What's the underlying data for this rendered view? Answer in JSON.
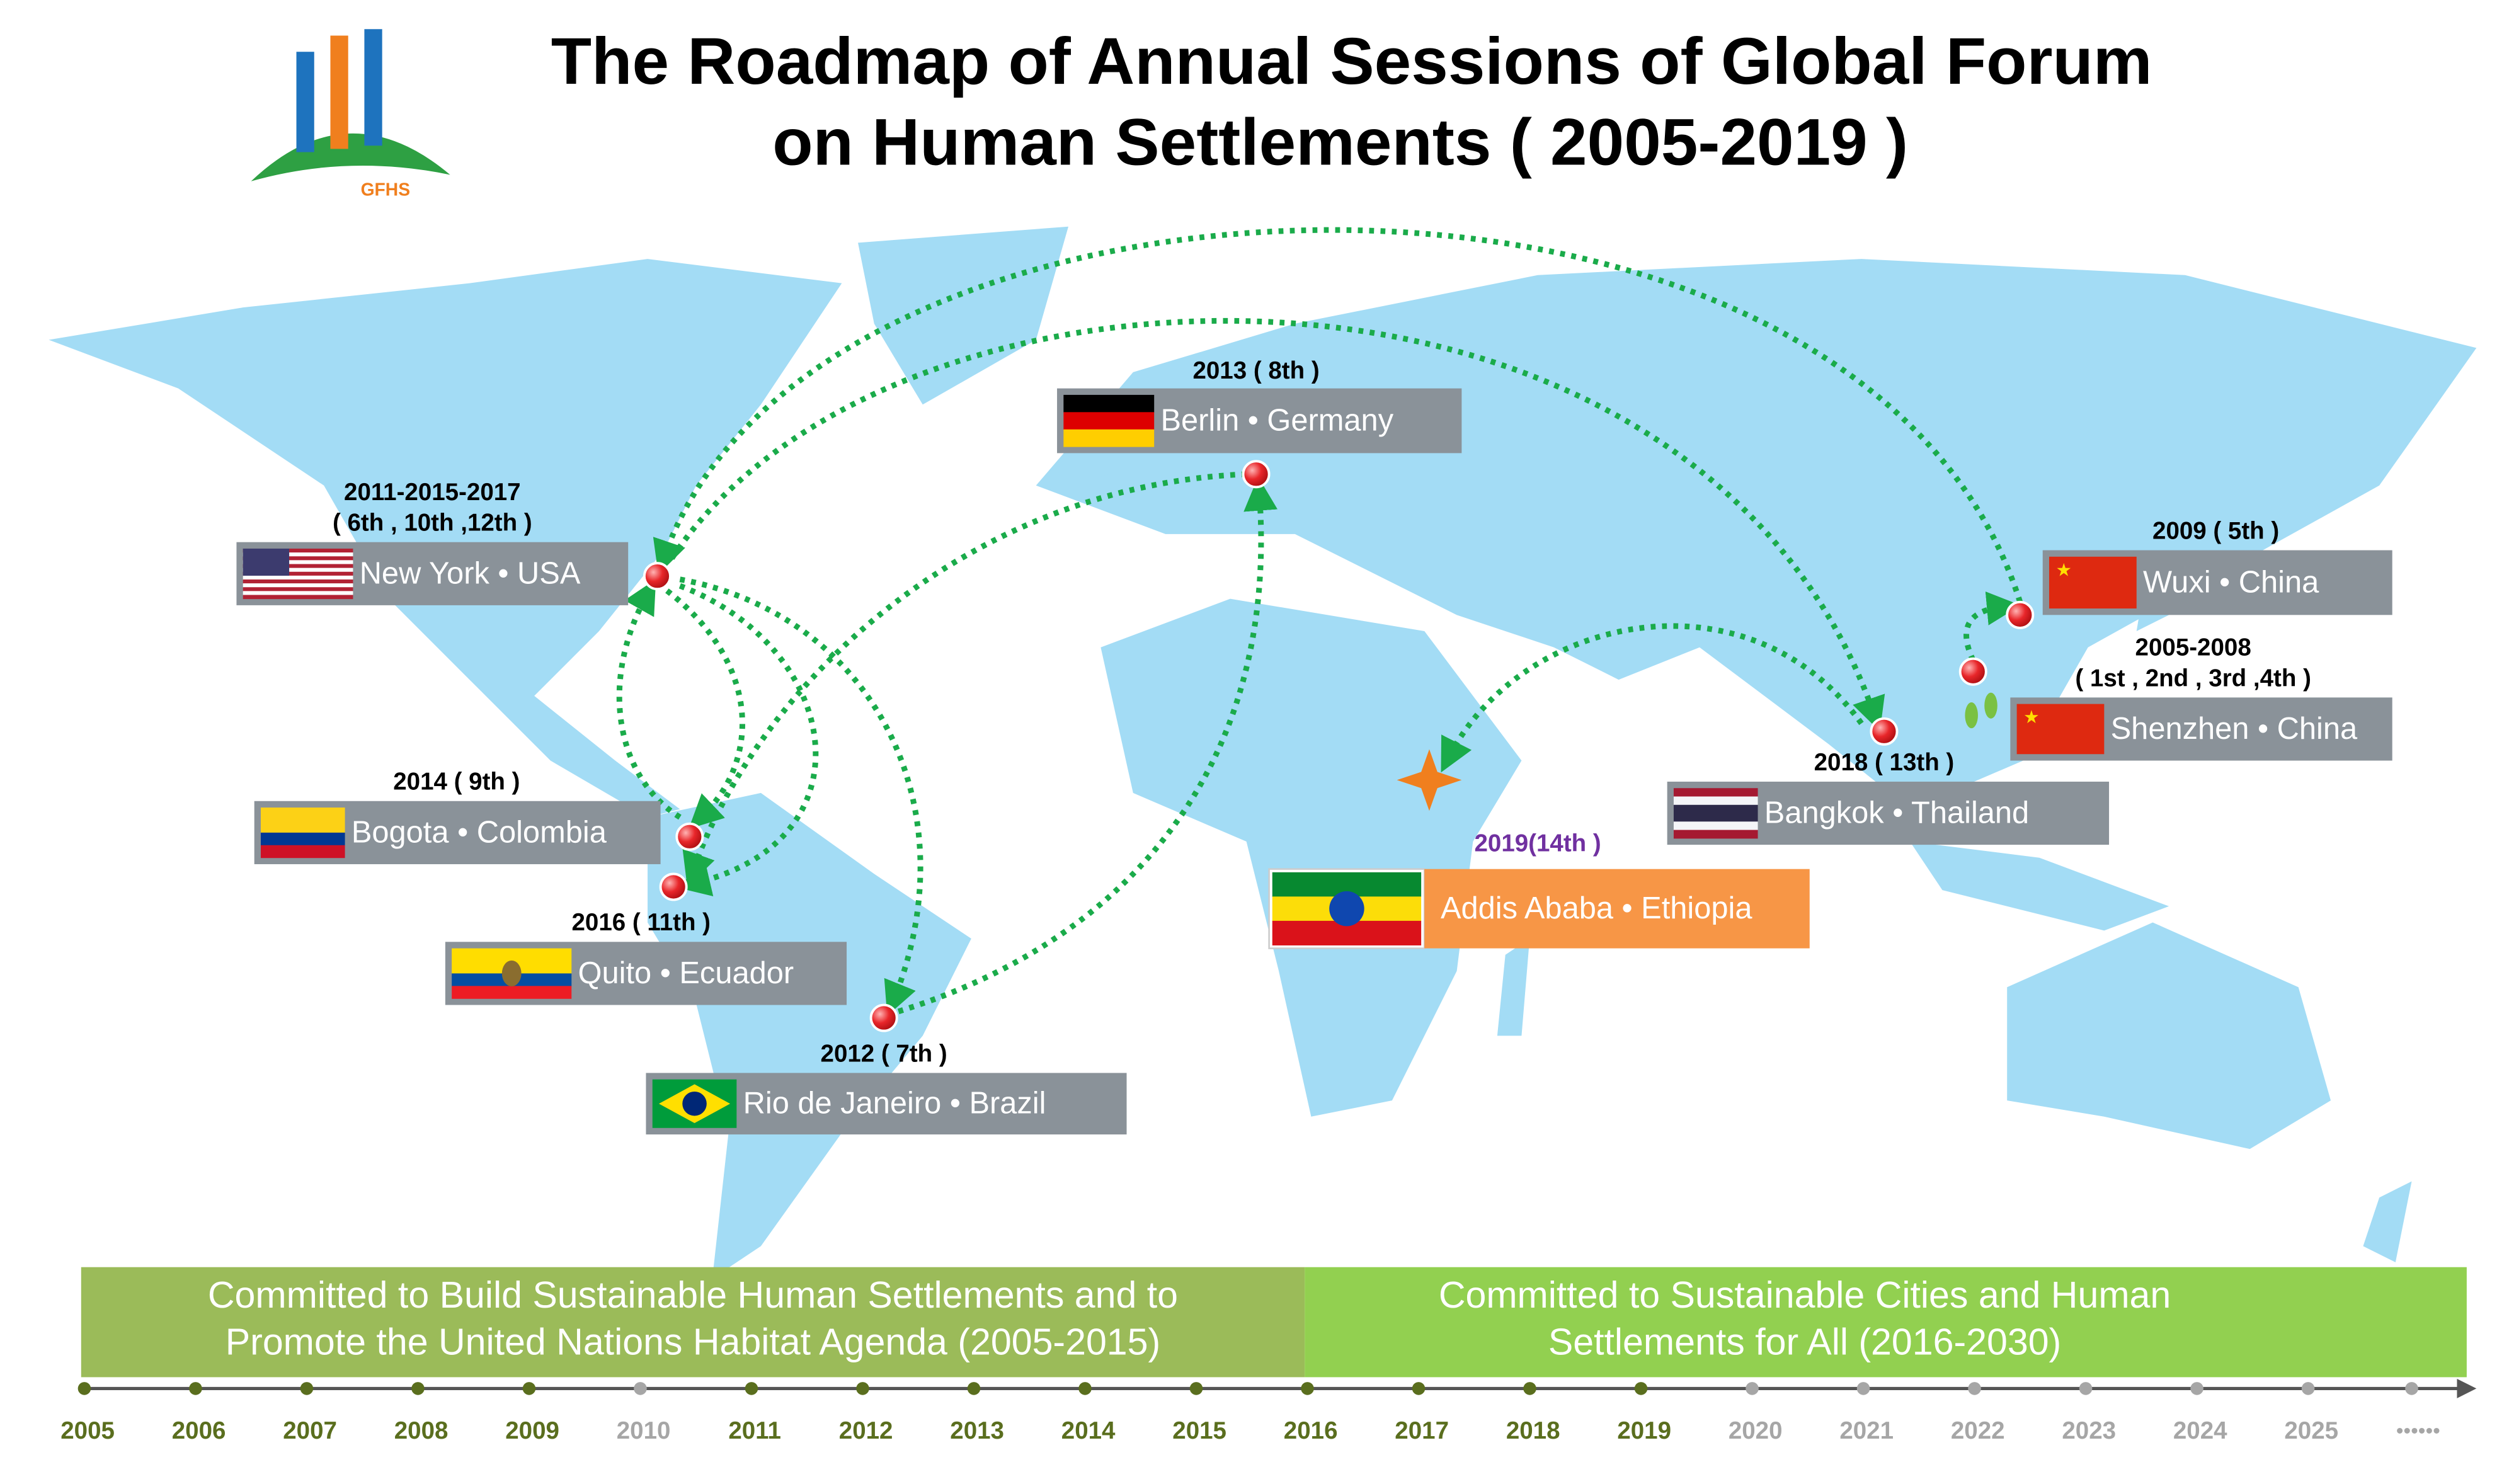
{
  "title": {
    "line1": "The Roadmap of  Annual Sessions of Global Forum",
    "line2": "on Human Settlements ( 2005-2019 )"
  },
  "logo": "GFHS",
  "sessions": [
    {
      "year": [
        "2013 ( 8th )"
      ],
      "city": "Berlin • Germany"
    },
    {
      "year": [
        "2011-2015-2017",
        "( 6th , 10th  ,12th  )"
      ],
      "city": "New York • USA"
    },
    {
      "year": [
        "2009 ( 5th )"
      ],
      "city": "Wuxi • China"
    },
    {
      "year": [
        "2005-2008",
        "( 1st , 2nd , 3rd  ,4th )"
      ],
      "city": "Shenzhen • China"
    },
    {
      "year": [
        "2018 ( 13th )"
      ],
      "city": "Bangkok • Thailand"
    },
    {
      "year": [
        "2014 ( 9th )"
      ],
      "city": "Bogota • Colombia"
    },
    {
      "year": [
        "2016 ( 11th )"
      ],
      "city": "Quito • Ecuador"
    },
    {
      "year": [
        "2012 ( 7th )"
      ],
      "city": "Rio de Janeiro •  Brazil"
    },
    {
      "year": [
        "2019(14th  )"
      ],
      "city": "Addis Ababa • Ethiopia"
    }
  ],
  "bands": [
    {
      "lines": [
        "Committed to Build Sustainable Human Settlements and to",
        "Promote the United Nations Habitat Agenda (2005-2015)"
      ],
      "color": "#9bbb59"
    },
    {
      "lines": [
        "Committed to Sustainable Cities and Human",
        "Settlements for All (2016-2030)"
      ],
      "color": "#92d050"
    }
  ],
  "timeline": {
    "years": [
      {
        "label": "2005",
        "color": "#5a6e1e"
      },
      {
        "label": "2006",
        "color": "#5a6e1e"
      },
      {
        "label": "2007",
        "color": "#5a6e1e"
      },
      {
        "label": "2008",
        "color": "#5a6e1e"
      },
      {
        "label": "2009",
        "color": "#5a6e1e"
      },
      {
        "label": "2010",
        "color": "#a6a6a6"
      },
      {
        "label": "2011",
        "color": "#5a6e1e"
      },
      {
        "label": "2012",
        "color": "#5a6e1e"
      },
      {
        "label": "2013",
        "color": "#5a6e1e"
      },
      {
        "label": "2014",
        "color": "#5a6e1e"
      },
      {
        "label": "2015",
        "color": "#5a6e1e"
      },
      {
        "label": "2016",
        "color": "#5a6e1e"
      },
      {
        "label": "2017",
        "color": "#5a6e1e"
      },
      {
        "label": "2018",
        "color": "#5a6e1e"
      },
      {
        "label": "2019",
        "color": "#5a6e1e"
      },
      {
        "label": "2020",
        "color": "#a6a6a6"
      },
      {
        "label": "2021",
        "color": "#a6a6a6"
      },
      {
        "label": "2022",
        "color": "#a6a6a6"
      },
      {
        "label": "2023",
        "color": "#a6a6a6"
      },
      {
        "label": "2024",
        "color": "#a6a6a6"
      },
      {
        "label": "2025",
        "color": "#a6a6a6"
      }
    ],
    "ellipsis": "••••••"
  }
}
